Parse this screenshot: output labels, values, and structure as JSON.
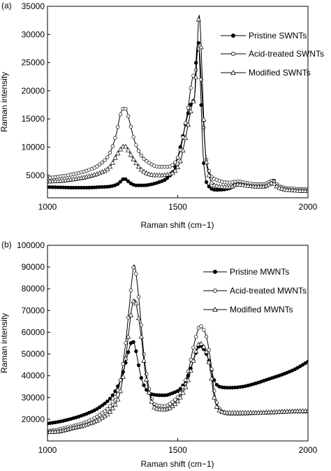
{
  "chart_data": [
    {
      "panel_label": "(a)",
      "type": "line",
      "xlabel": "Raman shift (cm−1)",
      "ylabel": "Raman intensity",
      "xlim": [
        1000,
        2000
      ],
      "ylim": [
        1000,
        35000
      ],
      "x_ticks": [
        1000,
        1500,
        2000
      ],
      "y_ticks": [
        5000,
        10000,
        15000,
        20000,
        25000,
        30000,
        35000
      ],
      "x_tick_labels": [
        "1000",
        "1500",
        "2000"
      ],
      "y_tick_labels": [
        "5000",
        "10000",
        "15000",
        "20000",
        "25000",
        "30000",
        "35000"
      ],
      "grid": false,
      "legend_position": "top-right",
      "series": [
        {
          "name": "Pristine SWNTs",
          "marker": "filled-circle",
          "points": [
            [
              1000,
              2900
            ],
            [
              1050,
              2850
            ],
            [
              1100,
              2800
            ],
            [
              1150,
              2800
            ],
            [
              1200,
              2900
            ],
            [
              1250,
              3100
            ],
            [
              1275,
              3600
            ],
            [
              1290,
              4300
            ],
            [
              1300,
              4300
            ],
            [
              1315,
              3700
            ],
            [
              1340,
              3200
            ],
            [
              1370,
              3200
            ],
            [
              1400,
              3400
            ],
            [
              1430,
              3800
            ],
            [
              1460,
              4500
            ],
            [
              1490,
              6500
            ],
            [
              1510,
              10000
            ],
            [
              1525,
              13000
            ],
            [
              1540,
              16000
            ],
            [
              1555,
              18000
            ],
            [
              1565,
              19000
            ],
            [
              1572,
              27000
            ],
            [
              1580,
              28500
            ],
            [
              1588,
              20000
            ],
            [
              1596,
              10000
            ],
            [
              1605,
              5000
            ],
            [
              1620,
              3000
            ],
            [
              1650,
              2400
            ],
            [
              1700,
              2700
            ],
            [
              1730,
              3400
            ],
            [
              1760,
              3300
            ],
            [
              1800,
              3100
            ],
            [
              1830,
              3000
            ],
            [
              1855,
              3600
            ],
            [
              1865,
              4300
            ],
            [
              1875,
              3600
            ],
            [
              1900,
              2700
            ],
            [
              1950,
              2400
            ],
            [
              2000,
              2300
            ]
          ]
        },
        {
          "name": "Acid-treated SWNTs",
          "marker": "open-circle",
          "points": [
            [
              1000,
              4500
            ],
            [
              1050,
              4800
            ],
            [
              1100,
              5200
            ],
            [
              1150,
              5800
            ],
            [
              1200,
              6900
            ],
            [
              1240,
              9000
            ],
            [
              1265,
              12500
            ],
            [
              1280,
              15800
            ],
            [
              1290,
              16800
            ],
            [
              1300,
              16800
            ],
            [
              1315,
              14500
            ],
            [
              1335,
              11000
            ],
            [
              1360,
              8500
            ],
            [
              1390,
              7200
            ],
            [
              1430,
              6500
            ],
            [
              1460,
              6500
            ],
            [
              1490,
              7300
            ],
            [
              1510,
              9500
            ],
            [
              1525,
              13000
            ],
            [
              1540,
              17000
            ],
            [
              1550,
              20500
            ],
            [
              1560,
              22700
            ],
            [
              1568,
              23000
            ],
            [
              1576,
              27000
            ],
            [
              1582,
              27500
            ],
            [
              1590,
              22000
            ],
            [
              1598,
              15000
            ],
            [
              1608,
              8500
            ],
            [
              1625,
              5200
            ],
            [
              1650,
              4200
            ],
            [
              1700,
              3700
            ],
            [
              1730,
              3900
            ],
            [
              1760,
              3700
            ],
            [
              1800,
              3400
            ],
            [
              1830,
              3400
            ],
            [
              1855,
              3900
            ],
            [
              1865,
              4100
            ],
            [
              1875,
              3600
            ],
            [
              1900,
              2900
            ],
            [
              1950,
              2600
            ],
            [
              2000,
              2500
            ]
          ]
        },
        {
          "name": "Modified SWNTs",
          "marker": "open-triangle",
          "points": [
            [
              1000,
              3900
            ],
            [
              1050,
              4000
            ],
            [
              1100,
              4300
            ],
            [
              1150,
              4700
            ],
            [
              1200,
              5400
            ],
            [
              1240,
              6500
            ],
            [
              1265,
              8500
            ],
            [
              1280,
              9600
            ],
            [
              1290,
              10100
            ],
            [
              1300,
              10100
            ],
            [
              1315,
              9000
            ],
            [
              1335,
              7500
            ],
            [
              1360,
              6000
            ],
            [
              1390,
              5200
            ],
            [
              1430,
              5000
            ],
            [
              1460,
              5100
            ],
            [
              1490,
              5800
            ],
            [
              1510,
              7500
            ],
            [
              1525,
              10500
            ],
            [
              1540,
              14000
            ],
            [
              1555,
              17500
            ],
            [
              1567,
              20000
            ],
            [
              1575,
              27500
            ],
            [
              1582,
              33500
            ],
            [
              1588,
              30000
            ],
            [
              1595,
              21000
            ],
            [
              1605,
              10000
            ],
            [
              1620,
              5000
            ],
            [
              1650,
              3100
            ],
            [
              1700,
              2900
            ],
            [
              1730,
              3400
            ],
            [
              1760,
              3200
            ],
            [
              1800,
              3000
            ],
            [
              1830,
              3000
            ],
            [
              1855,
              3500
            ],
            [
              1865,
              3700
            ],
            [
              1875,
              3200
            ],
            [
              1900,
              2600
            ],
            [
              1950,
              2300
            ],
            [
              2000,
              2200
            ]
          ]
        }
      ]
    },
    {
      "panel_label": "(b)",
      "type": "line",
      "xlabel": "Raman shift (cm−1)",
      "ylabel": "Raman intensity",
      "xlim": [
        1000,
        2000
      ],
      "ylim": [
        10000,
        100000
      ],
      "x_ticks": [
        1000,
        1500,
        2000
      ],
      "y_ticks": [
        10000,
        20000,
        30000,
        40000,
        50000,
        60000,
        70000,
        80000,
        90000,
        100000
      ],
      "x_tick_labels": [
        "1000",
        "1500",
        "2000"
      ],
      "y_tick_labels": [
        "",
        "20000",
        "30000",
        "40000",
        "50000",
        "60000",
        "70000",
        "80000",
        "90000",
        "100000"
      ],
      "grid": false,
      "legend_position": "top-right",
      "series": [
        {
          "name": "Pristine MWNTs",
          "marker": "filled-circle",
          "points": [
            [
              1000,
              18000
            ],
            [
              1050,
              19000
            ],
            [
              1100,
              20500
            ],
            [
              1150,
              22500
            ],
            [
              1200,
              25500
            ],
            [
              1250,
              31000
            ],
            [
              1280,
              38000
            ],
            [
              1300,
              46000
            ],
            [
              1315,
              53000
            ],
            [
              1325,
              56000
            ],
            [
              1335,
              54000
            ],
            [
              1345,
              48000
            ],
            [
              1360,
              39000
            ],
            [
              1380,
              33500
            ],
            [
              1400,
              31500
            ],
            [
              1450,
              31000
            ],
            [
              1480,
              32000
            ],
            [
              1510,
              34000
            ],
            [
              1540,
              40000
            ],
            [
              1560,
              47000
            ],
            [
              1575,
              52000
            ],
            [
              1585,
              54000
            ],
            [
              1595,
              53000
            ],
            [
              1610,
              50000
            ],
            [
              1625,
              45000
            ],
            [
              1640,
              38000
            ],
            [
              1660,
              35000
            ],
            [
              1700,
              34500
            ],
            [
              1750,
              35000
            ],
            [
              1800,
              36500
            ],
            [
              1850,
              38500
            ],
            [
              1900,
              40500
            ],
            [
              1950,
              43000
            ],
            [
              2000,
              46500
            ]
          ]
        },
        {
          "name": "Acid-treated MWNTs",
          "marker": "open-circle",
          "points": [
            [
              1000,
              14500
            ],
            [
              1050,
              15500
            ],
            [
              1100,
              17000
            ],
            [
              1150,
              18800
            ],
            [
              1200,
              22000
            ],
            [
              1250,
              28000
            ],
            [
              1280,
              38000
            ],
            [
              1300,
              55000
            ],
            [
              1315,
              73000
            ],
            [
              1325,
              85000
            ],
            [
              1333,
              91000
            ],
            [
              1342,
              85000
            ],
            [
              1355,
              70000
            ],
            [
              1370,
              50000
            ],
            [
              1390,
              34000
            ],
            [
              1410,
              27000
            ],
            [
              1450,
              26000
            ],
            [
              1480,
              28000
            ],
            [
              1510,
              32000
            ],
            [
              1540,
              42000
            ],
            [
              1560,
              53000
            ],
            [
              1575,
              60000
            ],
            [
              1585,
              63000
            ],
            [
              1595,
              62000
            ],
            [
              1610,
              58000
            ],
            [
              1625,
              48000
            ],
            [
              1640,
              33000
            ],
            [
              1660,
              25000
            ],
            [
              1700,
              22500
            ],
            [
              1750,
              22500
            ],
            [
              1800,
              22800
            ],
            [
              1850,
              23000
            ],
            [
              1900,
              23300
            ],
            [
              1950,
              23500
            ],
            [
              2000,
              23500
            ]
          ]
        },
        {
          "name": "Modified MWNTs",
          "marker": "open-triangle",
          "points": [
            [
              1000,
              14000
            ],
            [
              1050,
              14500
            ],
            [
              1100,
              16000
            ],
            [
              1150,
              17500
            ],
            [
              1200,
              20000
            ],
            [
              1250,
              25000
            ],
            [
              1280,
              33000
            ],
            [
              1300,
              48000
            ],
            [
              1315,
              63000
            ],
            [
              1325,
              72000
            ],
            [
              1335,
              75000
            ],
            [
              1345,
              70000
            ],
            [
              1360,
              58000
            ],
            [
              1375,
              42000
            ],
            [
              1395,
              30000
            ],
            [
              1415,
              25000
            ],
            [
              1450,
              24500
            ],
            [
              1480,
              26000
            ],
            [
              1510,
              30000
            ],
            [
              1540,
              38000
            ],
            [
              1560,
              47000
            ],
            [
              1575,
              53000
            ],
            [
              1585,
              55000
            ],
            [
              1595,
              54000
            ],
            [
              1610,
              51000
            ],
            [
              1625,
              43000
            ],
            [
              1640,
              30000
            ],
            [
              1660,
              24000
            ],
            [
              1700,
              23000
            ],
            [
              1750,
              23000
            ],
            [
              1800,
              23000
            ],
            [
              1850,
              23200
            ],
            [
              1900,
              23500
            ],
            [
              1950,
              23700
            ],
            [
              2000,
              23800
            ]
          ]
        }
      ]
    }
  ]
}
